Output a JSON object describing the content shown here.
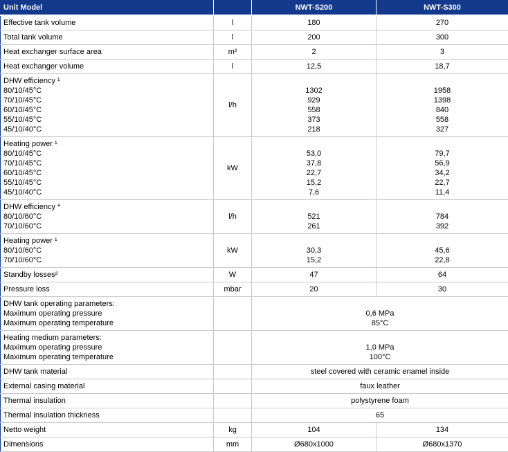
{
  "colors": {
    "header_bg": "#12398c",
    "header_text": "#ffffff",
    "body_text": "#000000",
    "grid_line": "#c9c9c9"
  },
  "chart_data": {
    "type": "table",
    "title": "Unit specification table",
    "columns": [
      "Unit Model",
      "",
      "NWT-S200",
      "NWT-S300"
    ],
    "rows": [
      {
        "label": [
          "Effective tank volume"
        ],
        "unit": "l",
        "s200": [
          "180"
        ],
        "s300": [
          "270"
        ]
      },
      {
        "label": [
          "Total tank volume"
        ],
        "unit": "l",
        "s200": [
          "200"
        ],
        "s300": [
          "300"
        ]
      },
      {
        "label": [
          "Heat exchanger surface area"
        ],
        "unit": "m²",
        "s200": [
          "2"
        ],
        "s300": [
          "3"
        ]
      },
      {
        "label": [
          "Heat exchanger volume"
        ],
        "unit": "l",
        "s200": [
          "12,5"
        ],
        "s300": [
          "18,7"
        ]
      },
      {
        "label": [
          "DHW efficiency ¹",
          "80/10/45°C",
          "70/10/45°C",
          "60/10/45°C",
          "55/10/45°C",
          "45/10/40°C"
        ],
        "unit": "l/h",
        "s200": [
          "",
          "1302",
          "929",
          "558",
          "373",
          "218"
        ],
        "s300": [
          "",
          "1958",
          "1398",
          "840",
          "558",
          "327"
        ]
      },
      {
        "label": [
          "Heating power ¹",
          "80/10/45°C",
          "70/10/45°C",
          "60/10/45°C",
          "55/10/45°C",
          "45/10/40°C"
        ],
        "unit": "kW",
        "s200": [
          "",
          "53,0",
          "37,8",
          "22,7",
          "15,2",
          "7,6"
        ],
        "s300": [
          "",
          "79,7",
          "56,9",
          "34,2",
          "22,7",
          "11,4"
        ]
      },
      {
        "label": [
          "DHW efficiency *",
          "80/10/60°C",
          "70/10/60°C"
        ],
        "unit": "l/h",
        "s200": [
          "",
          "521",
          "261"
        ],
        "s300": [
          "",
          "784",
          "392"
        ]
      },
      {
        "label": [
          "Heating power ¹",
          "80/10/60°C",
          "70/10/60°C"
        ],
        "unit": "kW",
        "s200": [
          "",
          "30,3",
          "15,2"
        ],
        "s300": [
          "",
          "45,6",
          "22,8"
        ]
      },
      {
        "label": [
          "Standby losses²"
        ],
        "unit": "W",
        "s200": [
          "47"
        ],
        "s300": [
          "64"
        ]
      },
      {
        "label": [
          "Pressure loss"
        ],
        "unit": "mbar",
        "s200": [
          "20"
        ],
        "s300": [
          "30"
        ]
      },
      {
        "label": [
          "DHW tank operating parameters:",
          "Maximum operating pressure",
          "Maximum operating temperature"
        ],
        "unit": "",
        "merged": [
          "",
          "0,6 MPa",
          "85°C"
        ]
      },
      {
        "label": [
          "Heating medium parameters:",
          "Maximum operating pressure",
          "Maximum operating temperature"
        ],
        "unit": "",
        "merged": [
          "",
          "1,0 MPa",
          "100°C"
        ]
      },
      {
        "label": [
          "DHW tank material"
        ],
        "unit": "",
        "merged": [
          "steel covered with ceramic enamel inside"
        ]
      },
      {
        "label": [
          "External casing material"
        ],
        "unit": "",
        "merged": [
          "faux leather"
        ]
      },
      {
        "label": [
          "Thermal insulation"
        ],
        "unit": "",
        "merged": [
          "polystyrene foam"
        ]
      },
      {
        "label": [
          "Thermal insulation thickness"
        ],
        "unit": "",
        "merged": [
          "65"
        ]
      },
      {
        "label": [
          "Netto weight"
        ],
        "unit": "kg",
        "s200": [
          "104"
        ],
        "s300": [
          "134"
        ]
      },
      {
        "label": [
          "Dimensions"
        ],
        "unit": "mm",
        "s200": [
          "Ø680x1000"
        ],
        "s300": [
          "Ø680x1370"
        ]
      }
    ]
  }
}
